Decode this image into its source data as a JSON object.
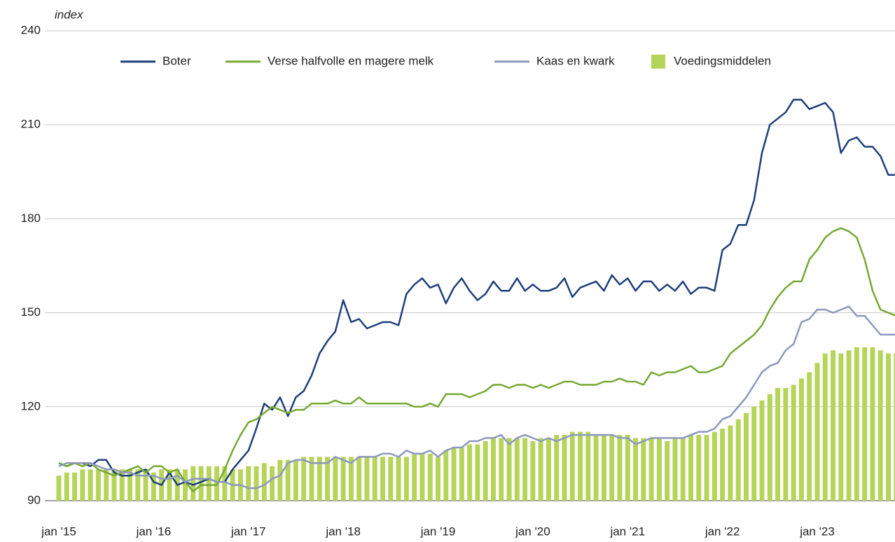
{
  "chart_data": {
    "type": "line_bar",
    "y_label": "index",
    "categories": [
      "jan '15",
      null,
      null,
      null,
      null,
      null,
      null,
      null,
      null,
      null,
      null,
      null,
      "jan '16",
      null,
      null,
      null,
      null,
      null,
      null,
      null,
      null,
      null,
      null,
      null,
      "jan '17",
      null,
      null,
      null,
      null,
      null,
      null,
      null,
      null,
      null,
      null,
      null,
      "jan '18",
      null,
      null,
      null,
      null,
      null,
      null,
      null,
      null,
      null,
      null,
      null,
      "jan '19",
      null,
      null,
      null,
      null,
      null,
      null,
      null,
      null,
      null,
      null,
      null,
      "jan '20",
      null,
      null,
      null,
      null,
      null,
      null,
      null,
      null,
      null,
      null,
      null,
      "jan '21",
      null,
      null,
      null,
      null,
      null,
      null,
      null,
      null,
      null,
      null,
      null,
      "jan '22",
      null,
      null,
      null,
      null,
      null,
      null,
      null,
      null,
      null,
      null,
      null,
      "jan '23",
      null,
      null,
      null,
      null,
      null,
      null,
      null,
      null,
      null,
      null
    ],
    "ylim": [
      90,
      240
    ],
    "yticks": [
      90,
      120,
      150,
      180,
      210,
      240
    ],
    "grid": true,
    "legend": "top",
    "series": [
      {
        "name": "Boter",
        "color": "#1f3f7a",
        "kind": "line",
        "values": [
          102,
          101,
          102,
          102,
          101,
          103,
          103,
          99,
          98,
          98,
          99,
          100,
          96,
          95,
          99,
          95,
          96,
          95,
          96,
          97,
          96,
          96,
          100,
          103,
          106,
          113,
          121,
          119,
          123,
          117,
          123,
          125,
          130,
          137,
          141,
          144,
          154,
          147,
          148,
          145,
          146,
          147,
          147,
          146,
          156,
          159,
          161,
          158,
          159,
          153,
          158,
          161,
          157,
          154,
          156,
          160,
          157,
          157,
          161,
          157,
          159,
          157,
          157,
          158,
          161,
          155,
          158,
          159,
          160,
          157,
          162,
          159,
          161,
          157,
          160,
          160,
          157,
          159,
          157,
          160,
          156,
          158,
          158,
          157,
          170,
          172,
          178,
          178,
          186,
          201,
          210,
          212,
          214,
          218,
          218,
          215,
          216,
          217,
          214,
          201,
          205,
          206,
          203,
          203,
          200,
          194,
          194
        ]
      },
      {
        "name": "Verse halfvolle en magere melk",
        "color": "#76a833",
        "kind": "line",
        "values": [
          102,
          101,
          102,
          101,
          102,
          100,
          99,
          98,
          99,
          100,
          101,
          99,
          101,
          101,
          99,
          100,
          96,
          93,
          95,
          95,
          95,
          100,
          106,
          111,
          115,
          116,
          118,
          120,
          119,
          118,
          119,
          119,
          121,
          121,
          121,
          122,
          121,
          121,
          123,
          121,
          121,
          121,
          121,
          121,
          121,
          120,
          120,
          121,
          120,
          124,
          124,
          124,
          123,
          124,
          125,
          127,
          127,
          126,
          127,
          127,
          126,
          127,
          126,
          127,
          128,
          128,
          127,
          127,
          127,
          128,
          128,
          129,
          128,
          128,
          127,
          131,
          130,
          131,
          131,
          132,
          133,
          131,
          131,
          132,
          133,
          137,
          139,
          141,
          143,
          146,
          151,
          155,
          158,
          160,
          160,
          167,
          170,
          174,
          176,
          177,
          176,
          174,
          167,
          157,
          151,
          150,
          149
        ]
      },
      {
        "name": "Kaas en kwark",
        "color": "#8d99bd",
        "kind": "line",
        "values": [
          101,
          102,
          102,
          102,
          102,
          101,
          100,
          100,
          99,
          99,
          98,
          98,
          98,
          97,
          97,
          98,
          96,
          97,
          97,
          97,
          96,
          96,
          95,
          95,
          94,
          94,
          95,
          97,
          98,
          102,
          103,
          103,
          102,
          102,
          102,
          104,
          103,
          102,
          104,
          104,
          104,
          105,
          105,
          104,
          106,
          105,
          105,
          106,
          104,
          106,
          107,
          107,
          109,
          109,
          110,
          110,
          111,
          108,
          110,
          111,
          110,
          109,
          110,
          109,
          110,
          111,
          111,
          111,
          111,
          111,
          111,
          110,
          110,
          108,
          109,
          110,
          110,
          110,
          110,
          110,
          111,
          112,
          112,
          113,
          116,
          117,
          120,
          123,
          127,
          131,
          133,
          134,
          138,
          140,
          147,
          148,
          151,
          151,
          150,
          151,
          152,
          149,
          149,
          146,
          143,
          143,
          143
        ]
      },
      {
        "name": "Voedingsmiddelen",
        "color": "#b6d45a",
        "kind": "bar",
        "values": [
          98,
          99,
          99,
          100,
          100,
          100,
          100,
          100,
          100,
          100,
          100,
          100,
          99,
          100,
          100,
          100,
          100,
          101,
          101,
          101,
          101,
          101,
          100,
          100,
          101,
          101,
          102,
          101,
          103,
          103,
          103,
          104,
          104,
          104,
          104,
          104,
          104,
          104,
          104,
          104,
          104,
          104,
          104,
          104,
          104,
          105,
          105,
          105,
          104,
          106,
          107,
          107,
          108,
          108,
          109,
          110,
          110,
          110,
          110,
          110,
          109,
          110,
          110,
          111,
          111,
          112,
          112,
          112,
          111,
          111,
          111,
          111,
          111,
          110,
          110,
          110,
          110,
          109,
          110,
          110,
          111,
          111,
          111,
          112,
          113,
          114,
          116,
          118,
          120,
          122,
          124,
          126,
          126,
          127,
          129,
          131,
          134,
          137,
          138,
          137,
          138,
          139,
          139,
          139,
          138,
          137,
          137
        ]
      }
    ]
  }
}
